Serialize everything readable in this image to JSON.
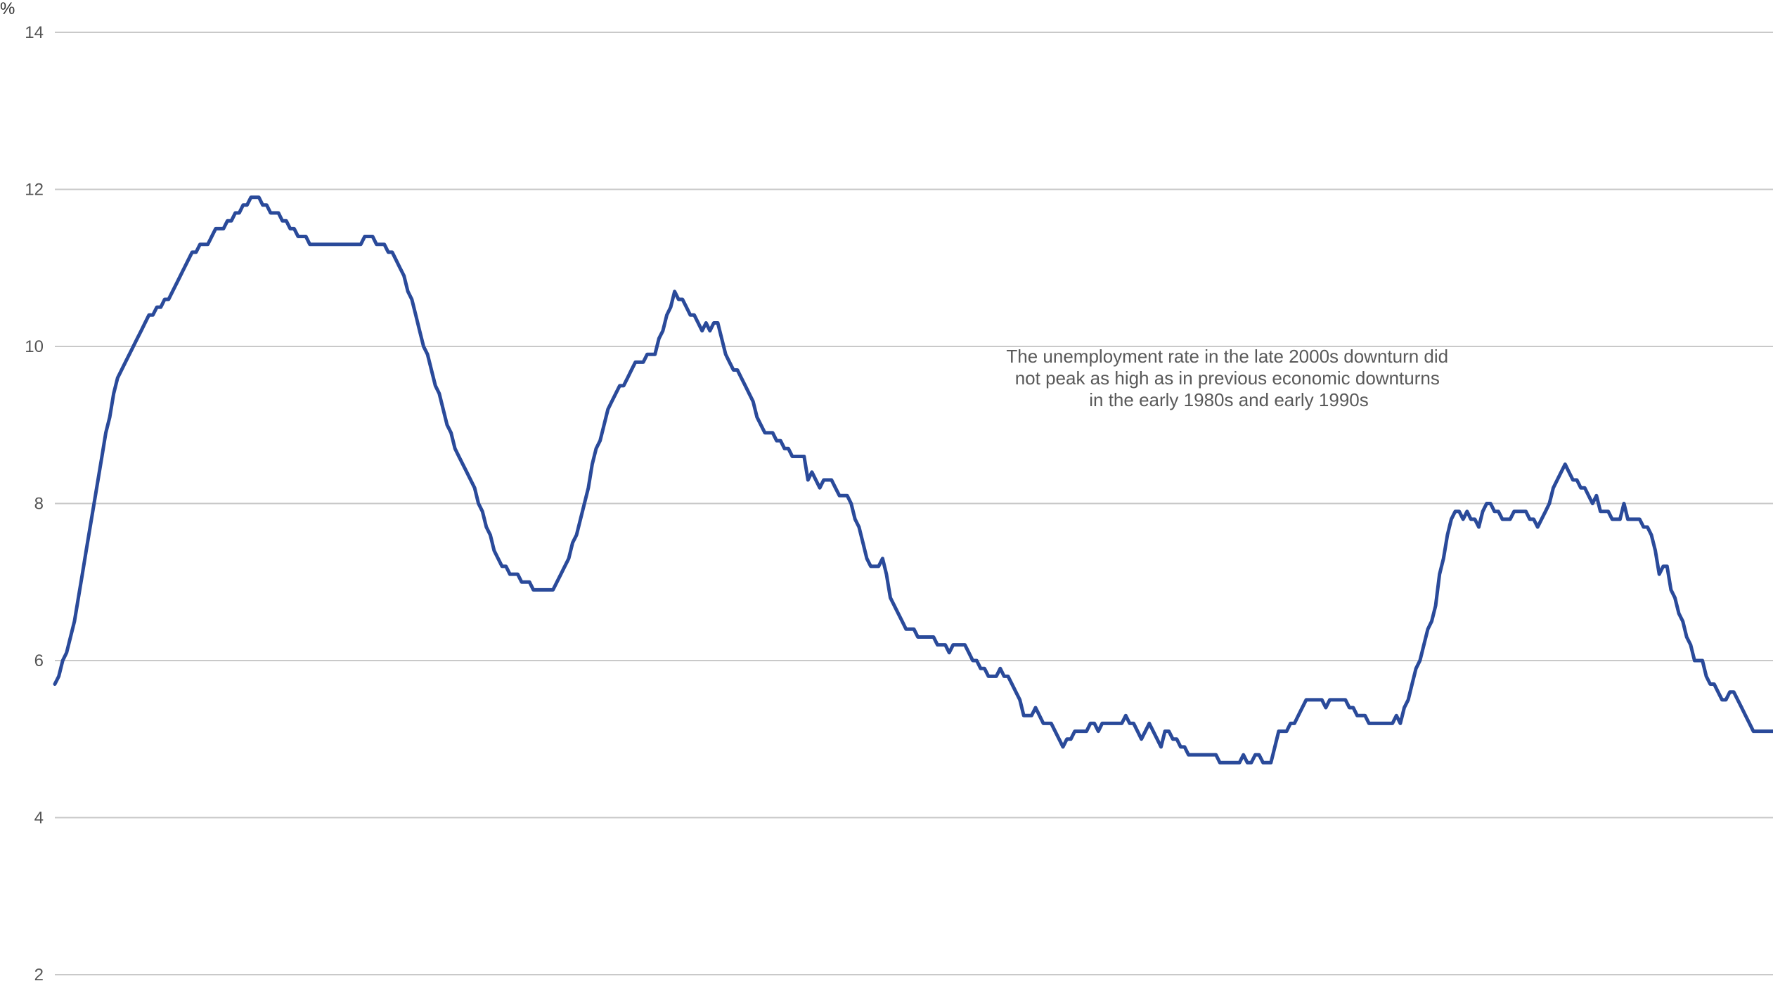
{
  "chart_data": {
    "type": "line",
    "unit_label": "%",
    "title": "",
    "xlabel": "",
    "ylabel": "",
    "ylim": [
      2,
      14
    ],
    "yticks": [
      "2",
      "4",
      "6",
      "8",
      "10",
      "12",
      "14"
    ],
    "grid": true,
    "legend": "none",
    "annotation": [
      "The unemployment rate in the late 2000s downturn did",
      "not peak as high as in previous economic downturns",
      "in the early 1980s and early 1990s"
    ],
    "colors": {
      "series": "#2a4a9a",
      "grid": "#c9c9c9",
      "tick_text": "#555555"
    },
    "series": [
      {
        "values": [
          5.7,
          5.8,
          6.0,
          6.1,
          6.3,
          6.5,
          6.8,
          7.1,
          7.4,
          7.7,
          8.0,
          8.3,
          8.6,
          8.9,
          9.1,
          9.4,
          9.6,
          9.7,
          9.8,
          9.9,
          10.0,
          10.1,
          10.2,
          10.3,
          10.4,
          10.4,
          10.5,
          10.5,
          10.6,
          10.6,
          10.7,
          10.8,
          10.9,
          11.0,
          11.1,
          11.2,
          11.2,
          11.3,
          11.3,
          11.3,
          11.4,
          11.5,
          11.5,
          11.5,
          11.6,
          11.6,
          11.7,
          11.7,
          11.8,
          11.8,
          11.9,
          11.9,
          11.9,
          11.8,
          11.8,
          11.7,
          11.7,
          11.7,
          11.6,
          11.6,
          11.5,
          11.5,
          11.4,
          11.4,
          11.4,
          11.3,
          11.3,
          11.3,
          11.3,
          11.3,
          11.3,
          11.3,
          11.3,
          11.3,
          11.3,
          11.3,
          11.3,
          11.3,
          11.3,
          11.4,
          11.4,
          11.4,
          11.3,
          11.3,
          11.3,
          11.2,
          11.2,
          11.1,
          11.0,
          10.9,
          10.7,
          10.6,
          10.4,
          10.2,
          10.0,
          9.9,
          9.7,
          9.5,
          9.4,
          9.2,
          9.0,
          8.9,
          8.7,
          8.6,
          8.5,
          8.4,
          8.3,
          8.2,
          8.0,
          7.9,
          7.7,
          7.6,
          7.4,
          7.3,
          7.2,
          7.2,
          7.1,
          7.1,
          7.1,
          7.0,
          7.0,
          7.0,
          6.9,
          6.9,
          6.9,
          6.9,
          6.9,
          6.9,
          7.0,
          7.1,
          7.2,
          7.3,
          7.5,
          7.6,
          7.8,
          8.0,
          8.2,
          8.5,
          8.7,
          8.8,
          9.0,
          9.2,
          9.3,
          9.4,
          9.5,
          9.5,
          9.6,
          9.7,
          9.8,
          9.8,
          9.8,
          9.9,
          9.9,
          9.9,
          10.1,
          10.2,
          10.4,
          10.5,
          10.7,
          10.6,
          10.6,
          10.5,
          10.4,
          10.4,
          10.3,
          10.2,
          10.3,
          10.2,
          10.3,
          10.3,
          10.1,
          9.9,
          9.8,
          9.7,
          9.7,
          9.6,
          9.5,
          9.4,
          9.3,
          9.1,
          9.0,
          8.9,
          8.9,
          8.9,
          8.8,
          8.8,
          8.7,
          8.7,
          8.6,
          8.6,
          8.6,
          8.6,
          8.3,
          8.4,
          8.3,
          8.2,
          8.3,
          8.3,
          8.3,
          8.2,
          8.1,
          8.1,
          8.1,
          8.0,
          7.8,
          7.7,
          7.5,
          7.3,
          7.2,
          7.2,
          7.2,
          7.3,
          7.1,
          6.8,
          6.7,
          6.6,
          6.5,
          6.4,
          6.4,
          6.4,
          6.3,
          6.3,
          6.3,
          6.3,
          6.3,
          6.2,
          6.2,
          6.2,
          6.1,
          6.2,
          6.2,
          6.2,
          6.2,
          6.1,
          6.0,
          6.0,
          5.9,
          5.9,
          5.8,
          5.8,
          5.8,
          5.9,
          5.8,
          5.8,
          5.7,
          5.6,
          5.5,
          5.3,
          5.3,
          5.3,
          5.4,
          5.3,
          5.2,
          5.2,
          5.2,
          5.1,
          5.0,
          4.9,
          5.0,
          5.0,
          5.1,
          5.1,
          5.1,
          5.1,
          5.2,
          5.2,
          5.1,
          5.2,
          5.2,
          5.2,
          5.2,
          5.2,
          5.2,
          5.3,
          5.2,
          5.2,
          5.1,
          5.0,
          5.1,
          5.2,
          5.1,
          5.0,
          4.9,
          5.1,
          5.1,
          5.0,
          5.0,
          4.9,
          4.9,
          4.8,
          4.8,
          4.8,
          4.8,
          4.8,
          4.8,
          4.8,
          4.8,
          4.7,
          4.7,
          4.7,
          4.7,
          4.7,
          4.7,
          4.8,
          4.7,
          4.7,
          4.8,
          4.8,
          4.7,
          4.7,
          4.7,
          4.9,
          5.1,
          5.1,
          5.1,
          5.2,
          5.2,
          5.3,
          5.4,
          5.5,
          5.5,
          5.5,
          5.5,
          5.5,
          5.4,
          5.5,
          5.5,
          5.5,
          5.5,
          5.5,
          5.4,
          5.4,
          5.3,
          5.3,
          5.3,
          5.2,
          5.2,
          5.2,
          5.2,
          5.2,
          5.2,
          5.2,
          5.3,
          5.2,
          5.4,
          5.5,
          5.7,
          5.9,
          6.0,
          6.2,
          6.4,
          6.5,
          6.7,
          7.1,
          7.3,
          7.6,
          7.8,
          7.9,
          7.9,
          7.8,
          7.9,
          7.8,
          7.8,
          7.7,
          7.9,
          8.0,
          8.0,
          7.9,
          7.9,
          7.8,
          7.8,
          7.8,
          7.9,
          7.9,
          7.9,
          7.9,
          7.8,
          7.8,
          7.7,
          7.8,
          7.9,
          8.0,
          8.2,
          8.3,
          8.4,
          8.5,
          8.4,
          8.3,
          8.3,
          8.2,
          8.2,
          8.1,
          8.0,
          8.1,
          7.9,
          7.9,
          7.9,
          7.8,
          7.8,
          7.8,
          8.0,
          7.8,
          7.8,
          7.8,
          7.8,
          7.7,
          7.7,
          7.6,
          7.4,
          7.1,
          7.2,
          7.2,
          6.9,
          6.8,
          6.6,
          6.5,
          6.3,
          6.2,
          6.0,
          6.0,
          6.0,
          5.8,
          5.7,
          5.7,
          5.6,
          5.5,
          5.5,
          5.6,
          5.6,
          5.5,
          5.4,
          5.3,
          5.2,
          5.1,
          5.1,
          5.1,
          5.1,
          5.1,
          5.1
        ]
      }
    ]
  }
}
